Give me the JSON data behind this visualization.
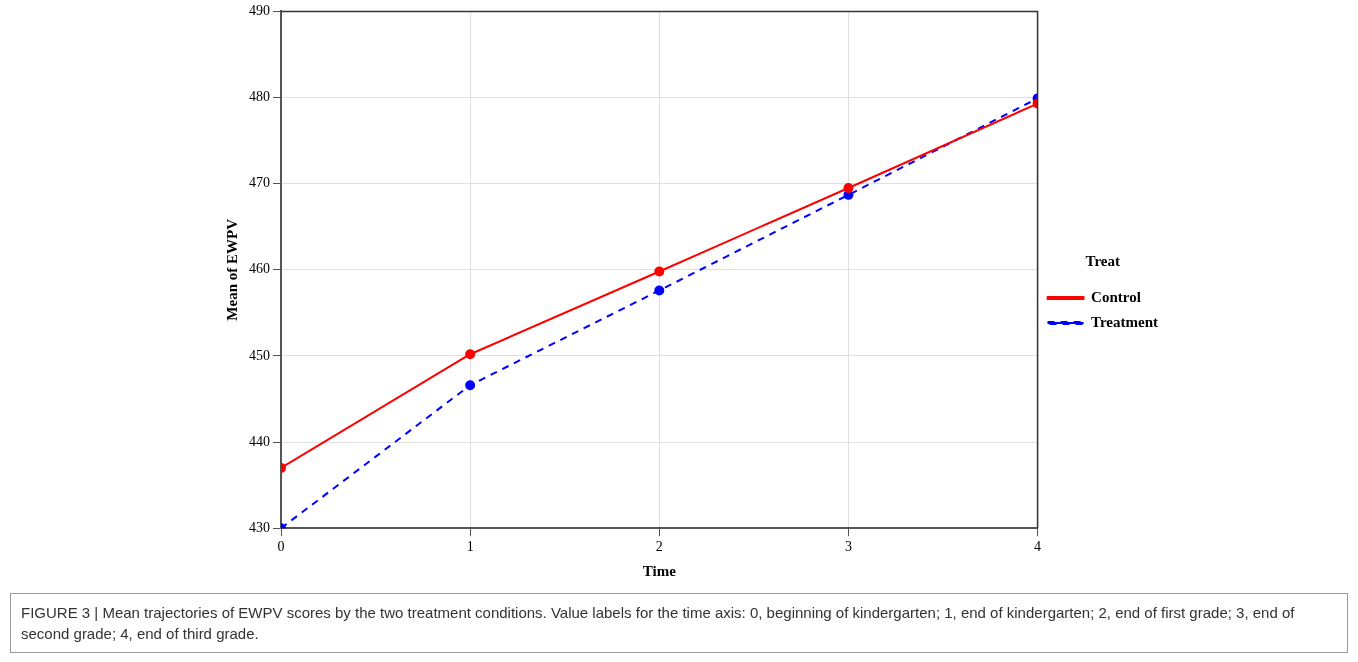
{
  "chart_data": {
    "type": "line",
    "xlabel": "Time",
    "ylabel": "Mean of EWPV",
    "legend_title": "Treat",
    "x": [
      0,
      1,
      2,
      3,
      4
    ],
    "xlim": [
      0,
      4
    ],
    "xticks": [
      0,
      1,
      2,
      3,
      4
    ],
    "ylim": [
      430,
      490
    ],
    "yticks": [
      430,
      440,
      450,
      460,
      470,
      480,
      490
    ],
    "series": [
      {
        "name": "Control",
        "color": "#ff0000",
        "line_style": "solid",
        "values": [
          437.0,
          450.2,
          459.8,
          469.5,
          479.3
        ]
      },
      {
        "name": "Treatment",
        "color": "#0000ff",
        "line_style": "dashed",
        "values": [
          430.0,
          446.6,
          457.6,
          468.7,
          479.9
        ]
      }
    ],
    "grid": true,
    "legend": "right",
    "marker": "circle",
    "annotations": [
      "FIGURE 3 | Mean trajectories of EWPV scores by the two treatment conditions. Value labels for the time axis: 0, beginning of kindergarten; 1, end of kindergarten; 2, end of first grade; 3, end of second grade; 4, end of third grade."
    ]
  }
}
